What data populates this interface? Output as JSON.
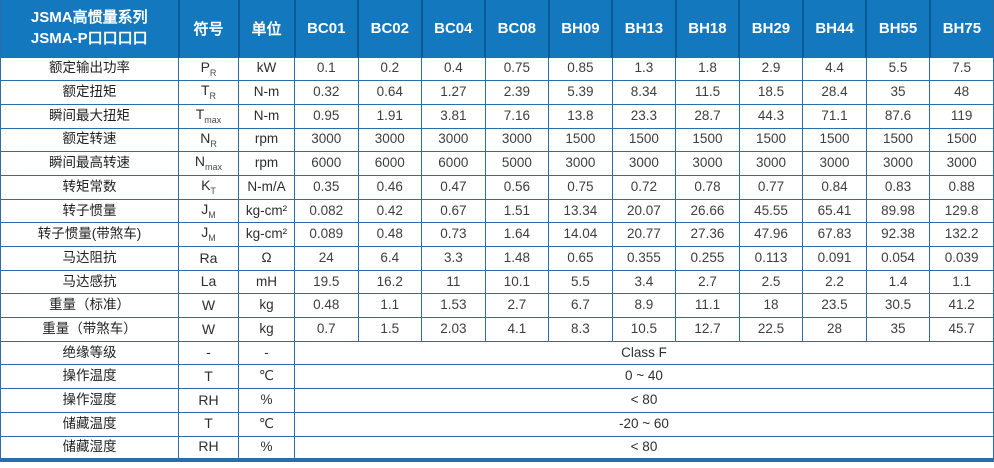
{
  "colors": {
    "header_bg": "#1478be",
    "header_divider": "#0b5b9b",
    "grid_border": "#2b6cab",
    "header_text": "#ffffff",
    "value_text": "#3e3e3e"
  },
  "table": {
    "header": {
      "title_line1": "JSMA高惯量系列",
      "title_line2": "JSMA-P口口口口",
      "symbol_label": "符号",
      "unit_label": "单位",
      "models": [
        "BC01",
        "BC02",
        "BC04",
        "BC08",
        "BH09",
        "BH13",
        "BH18",
        "BH29",
        "BH44",
        "BH55",
        "BH75"
      ]
    },
    "rows": [
      {
        "label": "额定输出功率",
        "symbol_base": "P",
        "symbol_sub": "R",
        "unit": "kW",
        "values": [
          "0.1",
          "0.2",
          "0.4",
          "0.75",
          "0.85",
          "1.3",
          "1.8",
          "2.9",
          "4.4",
          "5.5",
          "7.5"
        ]
      },
      {
        "label": "额定扭矩",
        "symbol_base": "T",
        "symbol_sub": "R",
        "unit": "N-m",
        "values": [
          "0.32",
          "0.64",
          "1.27",
          "2.39",
          "5.39",
          "8.34",
          "11.5",
          "18.5",
          "28.4",
          "35",
          "48"
        ]
      },
      {
        "label": "瞬间最大扭矩",
        "symbol_base": "T",
        "symbol_sub": "max",
        "unit": "N-m",
        "values": [
          "0.95",
          "1.91",
          "3.81",
          "7.16",
          "13.8",
          "23.3",
          "28.7",
          "44.3",
          "71.1",
          "87.6",
          "119"
        ]
      },
      {
        "label": "额定转速",
        "symbol_base": "N",
        "symbol_sub": "R",
        "unit": "rpm",
        "values": [
          "3000",
          "3000",
          "3000",
          "3000",
          "1500",
          "1500",
          "1500",
          "1500",
          "1500",
          "1500",
          "1500"
        ]
      },
      {
        "label": "瞬间最高转速",
        "symbol_base": "N",
        "symbol_sub": "max",
        "unit": "rpm",
        "values": [
          "6000",
          "6000",
          "6000",
          "5000",
          "3000",
          "3000",
          "3000",
          "3000",
          "3000",
          "3000",
          "3000"
        ]
      },
      {
        "label": "转矩常数",
        "symbol_base": "K",
        "symbol_sub": "T",
        "unit": "N-m/A",
        "values": [
          "0.35",
          "0.46",
          "0.47",
          "0.56",
          "0.75",
          "0.72",
          "0.78",
          "0.77",
          "0.84",
          "0.83",
          "0.88"
        ]
      },
      {
        "label": "转子惯量",
        "symbol_base": "J",
        "symbol_sub": "M",
        "unit": "kg-cm²",
        "values": [
          "0.082",
          "0.42",
          "0.67",
          "1.51",
          "13.34",
          "20.07",
          "26.66",
          "45.55",
          "65.41",
          "89.98",
          "129.8"
        ]
      },
      {
        "label": "转子惯量(带煞车)",
        "symbol_base": "J",
        "symbol_sub": "M",
        "unit": "kg-cm²",
        "values": [
          "0.089",
          "0.48",
          "0.73",
          "1.64",
          "14.04",
          "20.77",
          "27.36",
          "47.96",
          "67.83",
          "92.38",
          "132.2"
        ]
      },
      {
        "label": "马达阻抗",
        "symbol_base": "Ra",
        "symbol_sub": "",
        "unit": "Ω",
        "values": [
          "24",
          "6.4",
          "3.3",
          "1.48",
          "0.65",
          "0.355",
          "0.255",
          "0.113",
          "0.091",
          "0.054",
          "0.039"
        ]
      },
      {
        "label": "马达感抗",
        "symbol_base": "La",
        "symbol_sub": "",
        "unit": "mH",
        "values": [
          "19.5",
          "16.2",
          "11",
          "10.1",
          "5.5",
          "3.4",
          "2.7",
          "2.5",
          "2.2",
          "1.4",
          "1.1"
        ]
      },
      {
        "label": "重量（标准）",
        "symbol_base": "W",
        "symbol_sub": "",
        "unit": "kg",
        "values": [
          "0.48",
          "1.1",
          "1.53",
          "2.7",
          "6.7",
          "8.9",
          "11.1",
          "18",
          "23.5",
          "30.5",
          "41.2"
        ]
      },
      {
        "label": "重量（带煞车）",
        "symbol_base": "W",
        "symbol_sub": "",
        "unit": "kg",
        "values": [
          "0.7",
          "1.5",
          "2.03",
          "4.1",
          "8.3",
          "10.5",
          "12.7",
          "22.5",
          "28",
          "35",
          "45.7"
        ]
      },
      {
        "label": "绝缘等级",
        "symbol_base": "-",
        "symbol_sub": "",
        "unit": "-",
        "span_value": "Class F"
      },
      {
        "label": "操作温度",
        "symbol_base": "T",
        "symbol_sub": "",
        "unit": "℃",
        "span_value": "0 ~ 40"
      },
      {
        "label": "操作湿度",
        "symbol_base": "RH",
        "symbol_sub": "",
        "unit": "%",
        "span_value": "< 80"
      },
      {
        "label": "储藏温度",
        "symbol_base": "T",
        "symbol_sub": "",
        "unit": "℃",
        "span_value": "-20 ~ 60"
      },
      {
        "label": "储藏湿度",
        "symbol_base": "RH",
        "symbol_sub": "",
        "unit": "%",
        "span_value": "< 80"
      }
    ]
  }
}
